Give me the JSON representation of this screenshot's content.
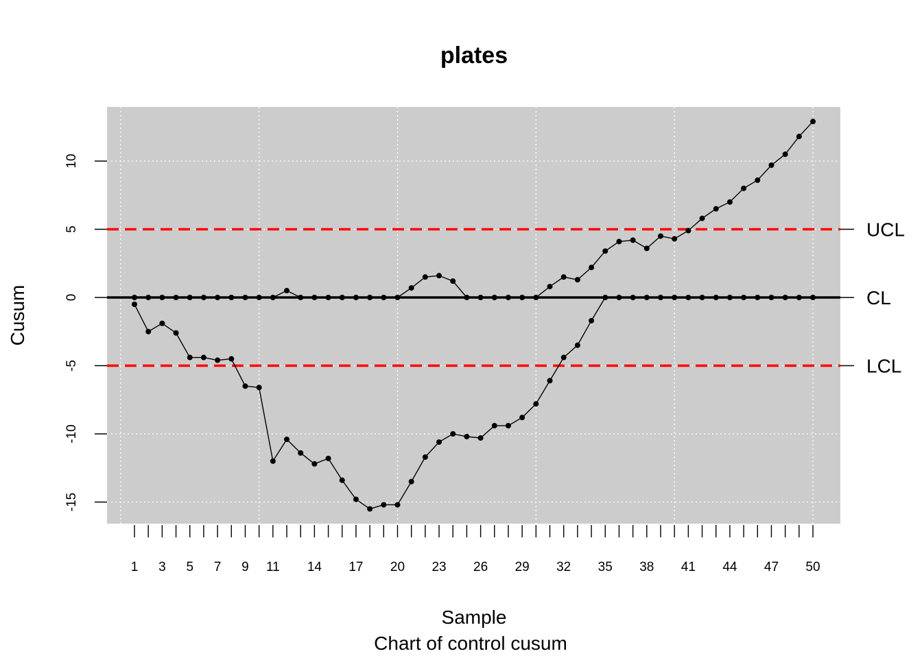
{
  "chart_data": {
    "type": "line",
    "title": "plates",
    "xlabel": "Sample",
    "subtitle": "Chart of control cusum",
    "ylabel": "Cusum",
    "xlim": [
      0,
      52
    ],
    "ylim": [
      -16.6,
      14
    ],
    "y_ticks": [
      -15,
      -10,
      -5,
      0,
      5,
      10
    ],
    "y_tick_labels": [
      "-15",
      "-10",
      "-5",
      "0",
      "5",
      "10"
    ],
    "x_ticks": [
      1,
      2,
      3,
      4,
      5,
      6,
      7,
      8,
      9,
      10,
      11,
      12,
      13,
      14,
      15,
      16,
      17,
      18,
      19,
      20,
      21,
      22,
      23,
      24,
      25,
      26,
      27,
      28,
      29,
      30,
      31,
      32,
      33,
      34,
      35,
      36,
      37,
      38,
      39,
      40,
      41,
      42,
      43,
      44,
      45,
      46,
      47,
      48,
      49,
      50
    ],
    "x_tick_labels_shown": [
      1,
      3,
      5,
      7,
      9,
      11,
      14,
      17,
      20,
      23,
      26,
      29,
      32,
      35,
      38,
      41,
      44,
      47,
      50
    ],
    "x_grid": [
      0,
      10,
      20,
      30,
      40,
      50
    ],
    "grid": true,
    "background": "#cccccc",
    "control_lines": [
      {
        "label": "UCL",
        "value": 5,
        "color": "#ff0000",
        "style": "dashed"
      },
      {
        "label": "CL",
        "value": 0,
        "color": "#000000",
        "style": "solid"
      },
      {
        "label": "LCL",
        "value": -5,
        "color": "#ff0000",
        "style": "dashed"
      }
    ],
    "x": [
      1,
      2,
      3,
      4,
      5,
      6,
      7,
      8,
      9,
      10,
      11,
      12,
      13,
      14,
      15,
      16,
      17,
      18,
      19,
      20,
      21,
      22,
      23,
      24,
      25,
      26,
      27,
      28,
      29,
      30,
      31,
      32,
      33,
      34,
      35,
      36,
      37,
      38,
      39,
      40,
      41,
      42,
      43,
      44,
      45,
      46,
      47,
      48,
      49,
      50
    ],
    "series": [
      {
        "values": [
          0,
          0,
          0,
          0,
          0,
          0,
          0,
          0,
          0,
          0,
          0,
          0.5,
          0,
          0,
          0,
          0,
          0,
          0,
          0,
          0,
          0.7,
          1.5,
          1.6,
          1.2,
          0,
          0,
          0,
          0,
          0,
          0,
          0.8,
          1.5,
          1.3,
          2.2,
          3.4,
          4.1,
          4.2,
          3.6,
          4.5,
          4.3,
          4.9,
          5.8,
          6.5,
          7.0,
          8.0,
          8.6,
          9.7,
          10.5,
          11.8,
          12.9
        ],
        "color": "#000000"
      },
      {
        "values": [
          -0.5,
          -2.5,
          -1.9,
          -2.6,
          -4.4,
          -4.4,
          -4.6,
          -4.5,
          -6.5,
          -6.6,
          -12.0,
          -10.4,
          -11.4,
          -12.2,
          -11.8,
          -13.4,
          -14.8,
          -15.5,
          -15.2,
          -15.2,
          -13.5,
          -11.7,
          -10.6,
          -10.0,
          -10.2,
          -10.3,
          -9.4,
          -9.4,
          -8.8,
          -7.8,
          -6.1,
          -4.4,
          -3.5,
          -1.7,
          0,
          0,
          0,
          0,
          0,
          0,
          0,
          0,
          0,
          0,
          0,
          0,
          0,
          0,
          0,
          0
        ],
        "color": "#000000"
      }
    ]
  }
}
